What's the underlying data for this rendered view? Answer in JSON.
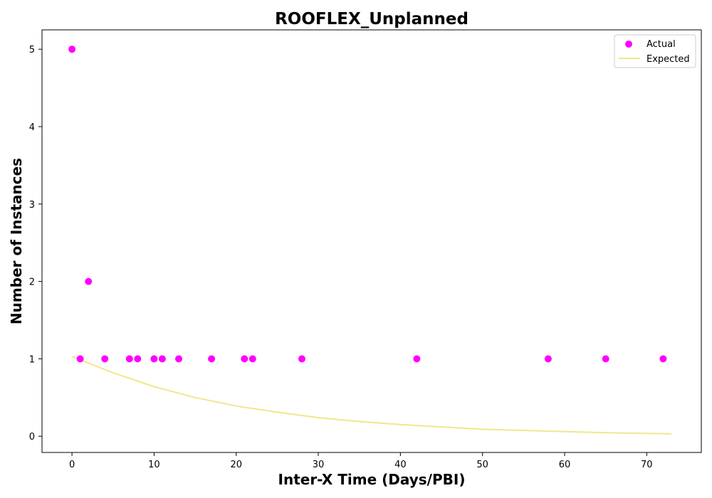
{
  "chart_data": {
    "type": "scatter",
    "title": "ROOFLEX_Unplanned",
    "xlabel": "Inter-X Time (Days/PBI)",
    "ylabel": "Number of Instances",
    "xlim": [
      -3.65,
      76.65
    ],
    "ylim": [
      -0.21,
      5.25
    ],
    "xticks": [
      0,
      10,
      20,
      30,
      40,
      50,
      60,
      70
    ],
    "yticks": [
      0,
      1,
      2,
      3,
      4,
      5
    ],
    "grid": false,
    "legend_position": "top-right",
    "series": [
      {
        "name": "Actual",
        "kind": "scatter",
        "color": "#ff00ff",
        "points": [
          {
            "x": 0,
            "y": 5
          },
          {
            "x": 1,
            "y": 1
          },
          {
            "x": 2,
            "y": 2
          },
          {
            "x": 4,
            "y": 1
          },
          {
            "x": 7,
            "y": 1
          },
          {
            "x": 8,
            "y": 1
          },
          {
            "x": 10,
            "y": 1
          },
          {
            "x": 11,
            "y": 1
          },
          {
            "x": 13,
            "y": 1
          },
          {
            "x": 17,
            "y": 1
          },
          {
            "x": 21,
            "y": 1
          },
          {
            "x": 22,
            "y": 1
          },
          {
            "x": 28,
            "y": 1
          },
          {
            "x": 42,
            "y": 1
          },
          {
            "x": 58,
            "y": 1
          },
          {
            "x": 65,
            "y": 1
          },
          {
            "x": 72,
            "y": 1
          }
        ]
      },
      {
        "name": "Expected",
        "kind": "line",
        "color": "#f0e68c",
        "points": [
          {
            "x": 0,
            "y": 1.03
          },
          {
            "x": 5,
            "y": 0.82
          },
          {
            "x": 10,
            "y": 0.64
          },
          {
            "x": 15,
            "y": 0.5
          },
          {
            "x": 20,
            "y": 0.39
          },
          {
            "x": 25,
            "y": 0.31
          },
          {
            "x": 30,
            "y": 0.24
          },
          {
            "x": 35,
            "y": 0.19
          },
          {
            "x": 40,
            "y": 0.15
          },
          {
            "x": 45,
            "y": 0.12
          },
          {
            "x": 50,
            "y": 0.09
          },
          {
            "x": 55,
            "y": 0.075
          },
          {
            "x": 60,
            "y": 0.06
          },
          {
            "x": 65,
            "y": 0.045
          },
          {
            "x": 70,
            "y": 0.036
          },
          {
            "x": 73,
            "y": 0.032
          }
        ]
      }
    ]
  }
}
